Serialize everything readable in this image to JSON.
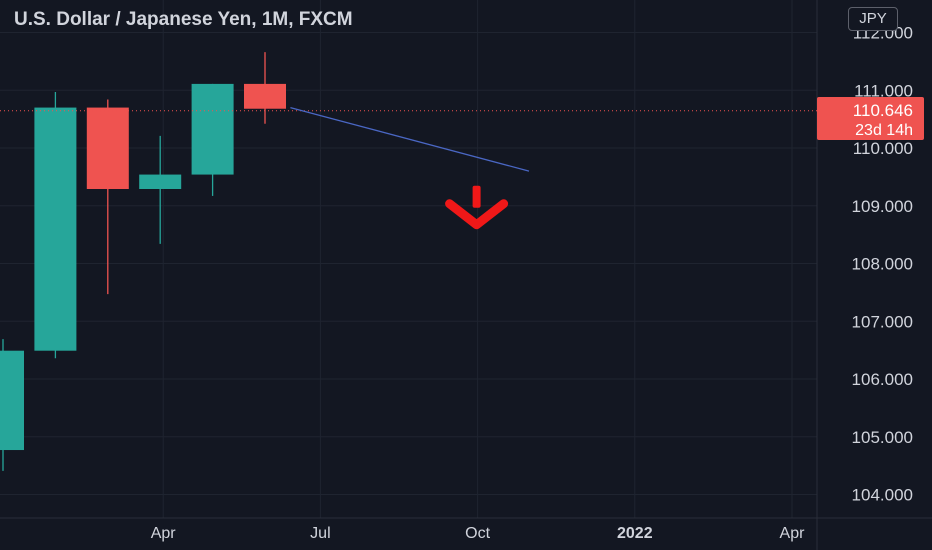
{
  "header": {
    "title": "U.S. Dollar / Japanese Yen, 1M, FXCM",
    "currency_badge": "JPY"
  },
  "price_label": {
    "price": "110.646",
    "countdown": "23d 14h"
  },
  "colors": {
    "background": "#131722",
    "grid": "#1f2430",
    "bull": "#26a69a",
    "bear": "#ef5350",
    "axis_text": "#d1d4dc",
    "trendline": "#4a67c4",
    "arrow": "#f01818"
  },
  "chart_data": {
    "type": "candlestick",
    "title": "U.S. Dollar / Japanese Yen, 1M, FXCM",
    "x_ticks": [
      "Apr",
      "Jul",
      "Oct",
      "2022",
      "Apr"
    ],
    "y_ticks": [
      "104.000",
      "105.000",
      "106.000",
      "107.000",
      "108.000",
      "109.000",
      "110.000",
      "111.000",
      "112.000"
    ],
    "ylim": [
      103.1,
      112.5
    ],
    "grid": true,
    "candles": [
      {
        "date": "2021-01",
        "open": 104.77,
        "high": 106.69,
        "low": 104.41,
        "close": 106.49
      },
      {
        "date": "2021-02",
        "open": 106.49,
        "high": 110.97,
        "low": 106.36,
        "close": 110.7
      },
      {
        "date": "2021-03",
        "open": 110.7,
        "high": 110.84,
        "low": 107.47,
        "close": 109.29
      },
      {
        "date": "2021-04",
        "open": 109.29,
        "high": 110.21,
        "low": 108.34,
        "close": 109.54
      },
      {
        "date": "2021-05",
        "open": 109.54,
        "high": 111.11,
        "low": 109.17,
        "close": 111.11
      },
      {
        "date": "2021-06",
        "open": 111.11,
        "high": 111.66,
        "low": 110.42,
        "close": 110.68
      }
    ],
    "current_price": 110.646,
    "trendline": {
      "start": {
        "date": "2021-07",
        "price": 110.7
      },
      "end": {
        "date": "2021-11",
        "price": 109.6
      }
    },
    "annotations": [
      {
        "type": "down-arrow",
        "date": "2021-10",
        "price": 109.0
      }
    ]
  }
}
